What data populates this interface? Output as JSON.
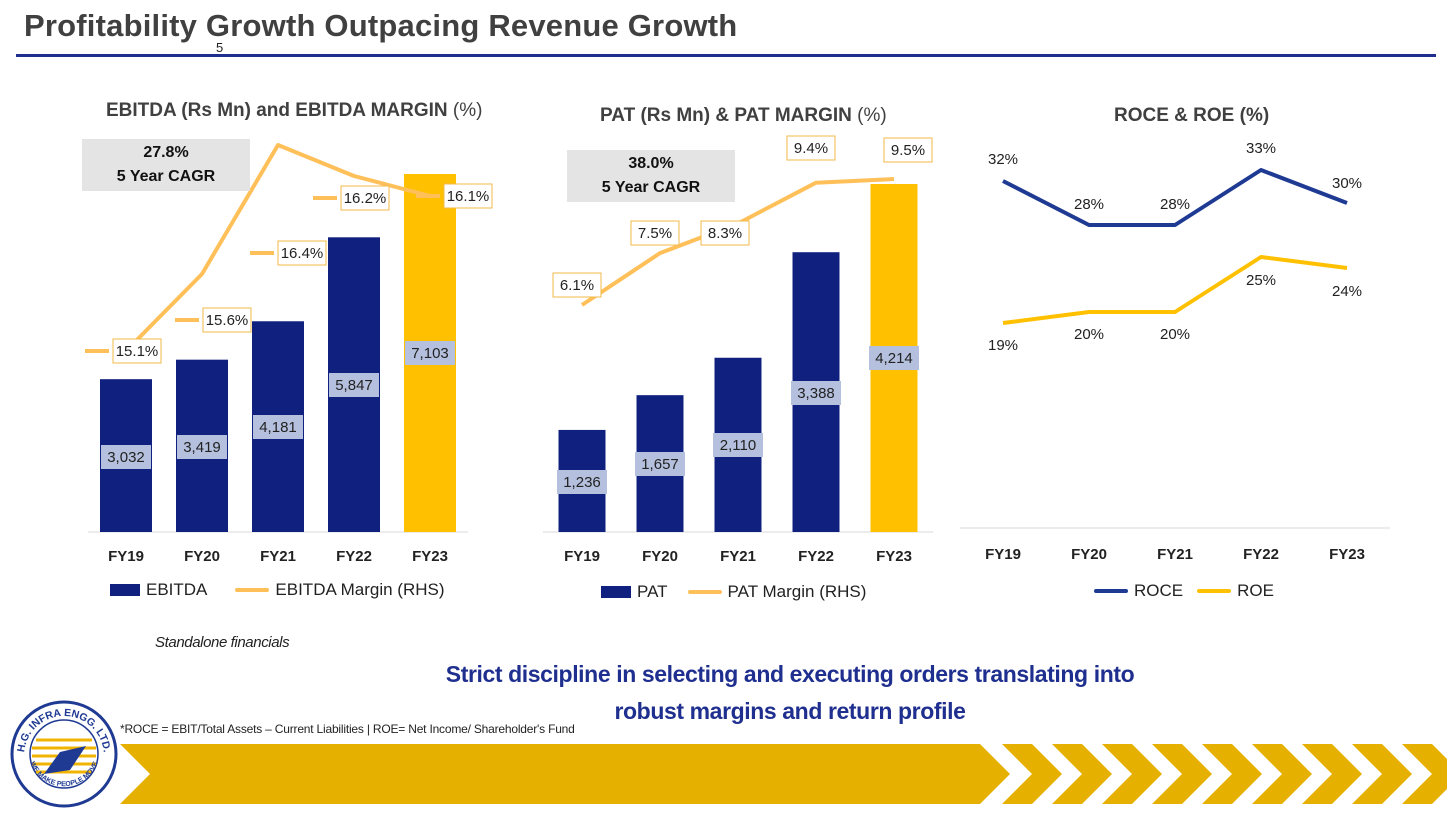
{
  "page": {
    "title": "Profitability Growth Outpacing Revenue Growth",
    "page_number": "5",
    "standalone_note": "Standalone financials",
    "tagline_line1": "Strict discipline in selecting and executing orders translating into",
    "tagline_line2": "robust margins and return profile",
    "footnote": "*ROCE = EBIT/Total Assets – Current Liabilities |  ROE= Net Income/ Shareholder's Fund",
    "logo_text_top": "H.G. INFRA ENGG. LTD.",
    "logo_text_bottom": "WE MAKE PEOPLE MOVE"
  },
  "colors": {
    "navy": "#10207f",
    "gold": "#ffc000",
    "line_orange": "#ffc059",
    "roce_blue": "#1f3a93",
    "roe_gold": "#ffc000",
    "title_grey": "#404040",
    "ribbon_gold": "#e6b000"
  },
  "chart_data": [
    {
      "type": "bar",
      "title_bold": "EBITDA (Rs Mn) and EBITDA MARGIN",
      "title_light": " (%)",
      "categories": [
        "FY19",
        "FY20",
        "FY21",
        "FY22",
        "FY23"
      ],
      "bar_series": {
        "name": "EBITDA",
        "values": [
          3032,
          3419,
          4181,
          5847,
          7103
        ],
        "labels": [
          "3,032",
          "3,419",
          "4,181",
          "5,847",
          "7,103"
        ]
      },
      "line_series": {
        "name": "EBITDA Margin (RHS)",
        "values": [
          15.1,
          15.6,
          16.4,
          16.2,
          16.1
        ],
        "labels": [
          "15.1%",
          "15.6%",
          "16.4%",
          "16.2%",
          "16.1%"
        ]
      },
      "cagr_value": "27.8%",
      "cagr_label": "5 Year CAGR",
      "legend": [
        "EBITDA",
        "EBITDA Margin (RHS)"
      ],
      "highlight_last": true
    },
    {
      "type": "bar",
      "title_bold": "PAT (Rs Mn) & PAT MARGIN",
      "title_light": " (%)",
      "categories": [
        "FY19",
        "FY20",
        "FY21",
        "FY22",
        "FY23"
      ],
      "bar_series": {
        "name": "PAT",
        "values": [
          1236,
          1657,
          2110,
          3388,
          4214
        ],
        "labels": [
          "1,236",
          "1,657",
          "2,110",
          "3,388",
          "4,214"
        ]
      },
      "line_series": {
        "name": "PAT Margin (RHS)",
        "values": [
          6.1,
          7.5,
          8.3,
          9.4,
          9.5
        ],
        "labels": [
          "6.1%",
          "7.5%",
          "8.3%",
          "9.4%",
          "9.5%"
        ]
      },
      "cagr_value": "38.0%",
      "cagr_label": "5 Year CAGR",
      "legend": [
        "PAT",
        "PAT Margin (RHS)"
      ],
      "highlight_last": true
    },
    {
      "type": "line",
      "title_bold": "ROCE & ROE (%)",
      "categories": [
        "FY19",
        "FY20",
        "FY21",
        "FY22",
        "FY23"
      ],
      "series": [
        {
          "name": "ROCE",
          "values": [
            32,
            28,
            28,
            33,
            30
          ],
          "labels": [
            "32%",
            "28%",
            "28%",
            "33%",
            "30%"
          ]
        },
        {
          "name": "ROE",
          "values": [
            19,
            20,
            20,
            25,
            24
          ],
          "labels": [
            "19%",
            "20%",
            "20%",
            "25%",
            "24%"
          ]
        }
      ],
      "legend": [
        "ROCE",
        "ROE"
      ]
    }
  ]
}
